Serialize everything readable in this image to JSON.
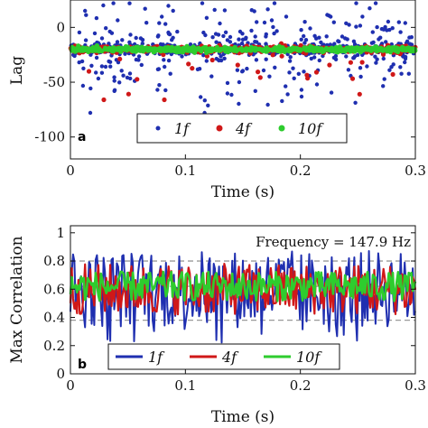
{
  "chart_data": [
    {
      "panel": "a",
      "type": "scatter",
      "xlabel": "Time (s)",
      "ylabel": "Lag",
      "xlim": [
        0,
        0.3
      ],
      "ylim": [
        -120,
        25
      ],
      "xticks": [
        0,
        0.1,
        0.2,
        0.3
      ],
      "xtick_labels": [
        "0",
        "0.1",
        "0.2",
        "0.3"
      ],
      "yticks": [
        0,
        -50,
        -100
      ],
      "ytick_labels": [
        "0",
        "-50",
        "-100"
      ],
      "legend_position": "bottom-center",
      "series": [
        {
          "name": "1f",
          "color": "#1f2fb0",
          "baseline": -20,
          "spread": "wide, roughly -75 to +20"
        },
        {
          "name": "4f",
          "color": "#d01818",
          "baseline": -20,
          "spread": "narrow with outliers down to about -65"
        },
        {
          "name": "10f",
          "color": "#2ecc2e",
          "baseline": -20,
          "spread": "very tight band around -20"
        }
      ]
    },
    {
      "panel": "b",
      "type": "line",
      "xlabel": "Time (s)",
      "ylabel": "Max Correlation",
      "xlim": [
        0,
        0.3
      ],
      "ylim": [
        0,
        1.05
      ],
      "xticks": [
        0,
        0.1,
        0.2,
        0.3
      ],
      "xtick_labels": [
        "0",
        "0.1",
        "0.2",
        "0.3"
      ],
      "yticks": [
        0,
        0.2,
        0.4,
        0.6,
        0.8,
        1
      ],
      "ytick_labels": [
        "0",
        "0.2",
        "0.4",
        "0.6",
        "0.8",
        "1"
      ],
      "annotation": "Frequency = 147.9 Hz",
      "reference_lines": [
        0.38,
        0.62,
        0.8
      ],
      "legend_position": "bottom-center",
      "series": [
        {
          "name": "1f",
          "color": "#1f2fb0",
          "mean": 0.6,
          "range": [
            0.3,
            0.88
          ]
        },
        {
          "name": "4f",
          "color": "#d01818",
          "mean": 0.6,
          "range": [
            0.42,
            0.8
          ]
        },
        {
          "name": "10f",
          "color": "#2ecc2e",
          "mean": 0.62,
          "range": [
            0.5,
            0.72
          ]
        }
      ]
    }
  ]
}
